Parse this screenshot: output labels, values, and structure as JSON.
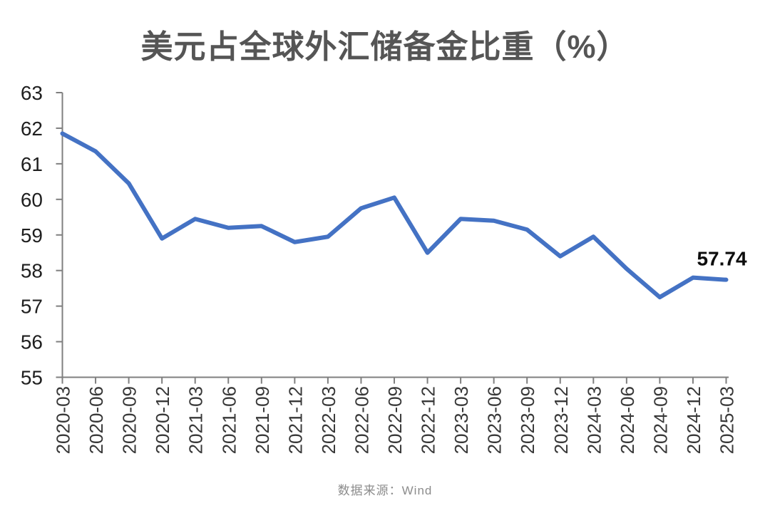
{
  "title": "美元占全球外汇储备金比重（%）",
  "footer": {
    "source_label": "数据来源：Wind"
  },
  "colors": {
    "background": "#ffffff",
    "line": "#4472C4",
    "title": "#555555",
    "axis": "#7f7f7f",
    "y_tick_label": "#1f1f1f",
    "x_tick_label": "#383838",
    "annotation": "#0d0d0d",
    "footer": "#8c8c8c"
  },
  "chart_data": {
    "type": "line",
    "title": "美元占全球外汇储备金比重（%）",
    "categories": [
      "2020-03",
      "2020-06",
      "2020-09",
      "2020-12",
      "2021-03",
      "2021-06",
      "2021-09",
      "2021-12",
      "2022-03",
      "2022-06",
      "2022-09",
      "2022-12",
      "2023-03",
      "2023-06",
      "2023-09",
      "2023-12",
      "2024-03",
      "2024-06",
      "2024-09",
      "2024-12",
      "2025-03"
    ],
    "values": [
      61.85,
      61.35,
      60.45,
      58.9,
      59.45,
      59.2,
      59.25,
      58.8,
      58.95,
      59.75,
      60.05,
      58.5,
      59.45,
      59.4,
      59.15,
      58.4,
      58.95,
      58.05,
      57.25,
      57.8,
      57.74
    ],
    "ylim": [
      55,
      63
    ],
    "yticks": [
      63,
      62,
      61,
      60,
      59,
      58,
      57,
      56,
      55
    ],
    "grid": false,
    "legend": "none",
    "x_label_rotation": -90,
    "annotation": {
      "text": "57.74",
      "point_index": 20
    },
    "source": "数据来源：Wind"
  }
}
